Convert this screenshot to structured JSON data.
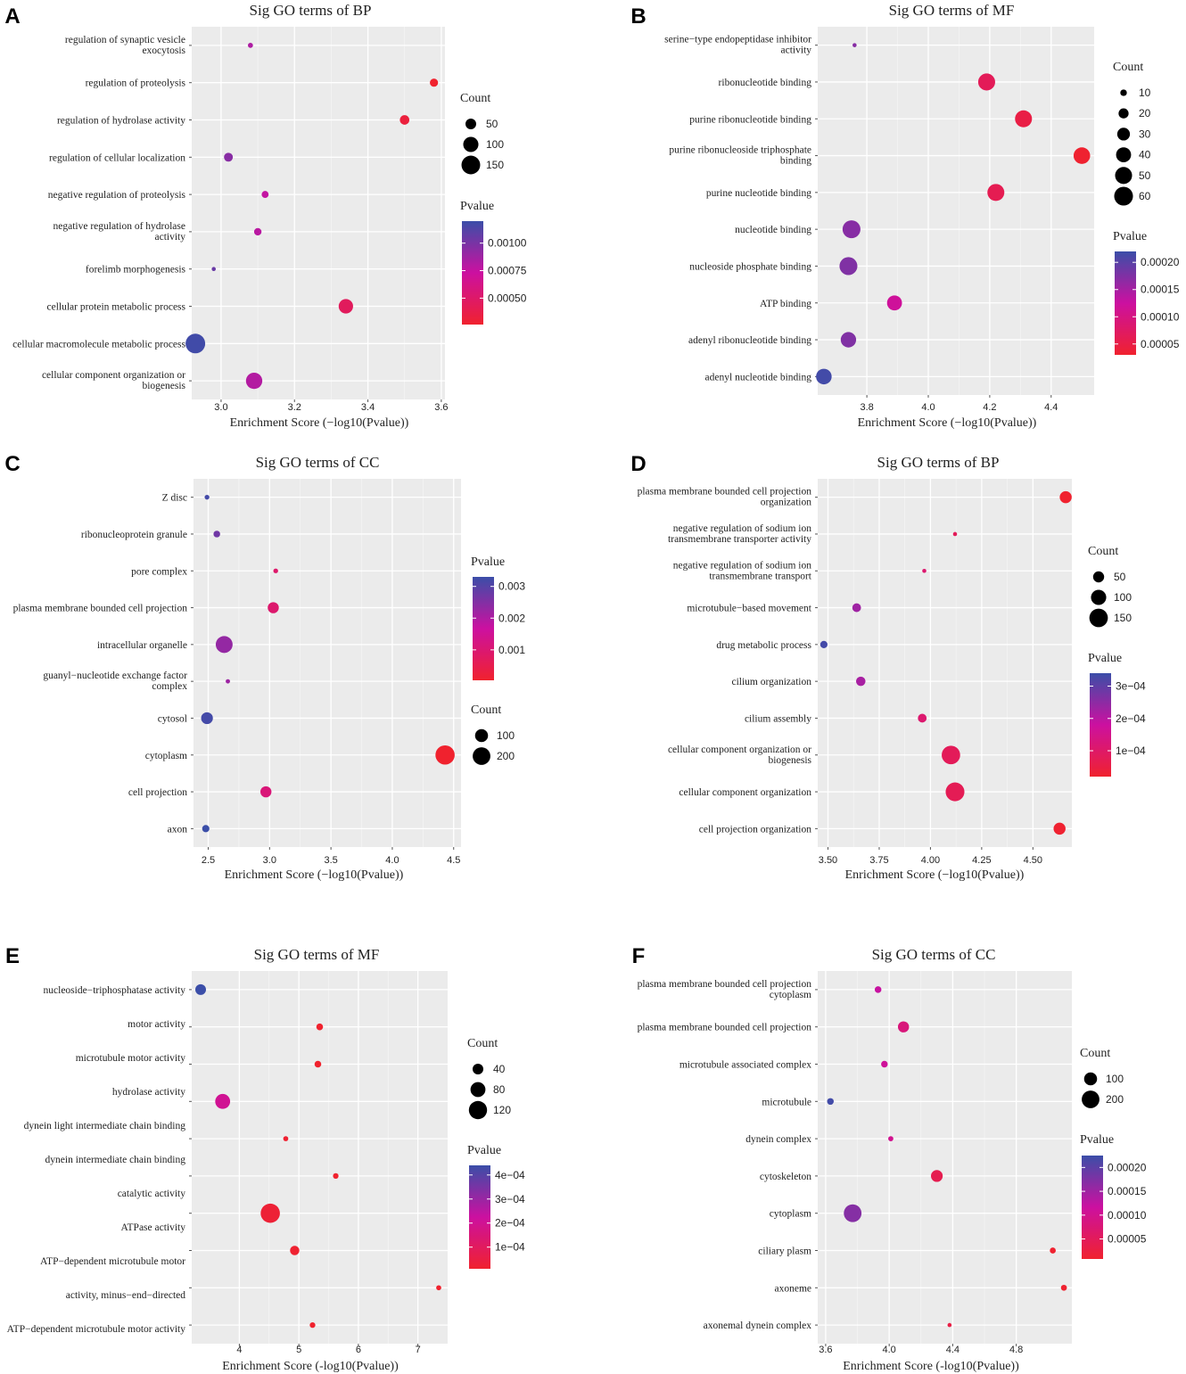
{
  "figure": {
    "x_axis_title": "Enrichment Score (−log10(Pvalue))",
    "count_legend_title": "Count",
    "pvalue_legend_title": "Pvalue",
    "color_low": "#f0222e",
    "color_mid": "#cc10a0",
    "color_high": "#3b4ea8",
    "panel_background": "#ebebeb"
  },
  "chart_data": [
    {
      "panel": "A",
      "type": "scatter",
      "title": "Sig GO terms of BP",
      "xlabel": "Enrichment Score (−log10(Pvalue))",
      "xlim": [
        2.92,
        3.61
      ],
      "xticks": [
        3.0,
        3.2,
        3.4,
        3.6
      ],
      "xtick_labels": [
        "3.0",
        "3.2",
        "3.4",
        "3.6"
      ],
      "legend_order": "count-first",
      "count_breaks": [
        50,
        100,
        150
      ],
      "count_range": [
        8,
        165
      ],
      "pvalue_breaks": [
        0.001,
        0.00075,
        0.0005
      ],
      "pvalue_labels": [
        "0.00100",
        "0.00075",
        "0.00050"
      ],
      "pvalue_range": [
        0.00026,
        0.0012
      ],
      "terms": [
        {
          "label": [
            "regulation of synaptic vesicle",
            "exocytosis"
          ],
          "x": 3.08,
          "count": 12,
          "pvalue": 0.00083
        },
        {
          "label": [
            "regulation of proteolysis"
          ],
          "x": 3.58,
          "count": 30,
          "pvalue": 0.00026
        },
        {
          "label": [
            "regulation of hydrolase activity"
          ],
          "x": 3.5,
          "count": 40,
          "pvalue": 0.00032
        },
        {
          "label": [
            "regulation of cellular localization"
          ],
          "x": 3.02,
          "count": 35,
          "pvalue": 0.00095
        },
        {
          "label": [
            "negative regulation of proteolysis"
          ],
          "x": 3.12,
          "count": 22,
          "pvalue": 0.00076
        },
        {
          "label": [
            "negative regulation of hydrolase",
            "activity"
          ],
          "x": 3.1,
          "count": 25,
          "pvalue": 0.00079
        },
        {
          "label": [
            "forelimb morphogenesis"
          ],
          "x": 2.98,
          "count": 8,
          "pvalue": 0.00105
        },
        {
          "label": [
            "cellular protein metabolic process"
          ],
          "x": 3.34,
          "count": 90,
          "pvalue": 0.00045
        },
        {
          "label": [
            "cellular macromolecule metabolic process"
          ],
          "x": 2.93,
          "count": 165,
          "pvalue": 0.00118
        },
        {
          "label": [
            "cellular component organization or",
            "biogenesis"
          ],
          "x": 3.09,
          "count": 115,
          "pvalue": 0.00081
        }
      ]
    },
    {
      "panel": "B",
      "type": "scatter",
      "title": "Sig GO terms of MF",
      "xlabel": "Enrichment Score (−log10(Pvalue))",
      "xlim": [
        3.64,
        4.54
      ],
      "xticks": [
        3.8,
        4.0,
        4.2,
        4.4
      ],
      "xtick_labels": [
        "3.8",
        "4.0",
        "4.2",
        "4.4"
      ],
      "legend_order": "count-first",
      "count_breaks": [
        10,
        20,
        30,
        40,
        50,
        60
      ],
      "count_range": [
        5,
        65
      ],
      "pvalue_breaks": [
        0.0002,
        0.00015,
        0.0001,
        5e-05
      ],
      "pvalue_labels": [
        "0.00020",
        "0.00015",
        "0.00010",
        "0.00005"
      ],
      "pvalue_range": [
        3e-05,
        0.00022
      ],
      "terms": [
        {
          "label": [
            "serine−type endopeptidase inhibitor",
            "activity"
          ],
          "x": 3.76,
          "count": 5,
          "pvalue": 0.00017
        },
        {
          "label": [
            "ribonucleotide binding"
          ],
          "x": 4.19,
          "count": 50,
          "pvalue": 6.5e-05
        },
        {
          "label": [
            "purine ribonucleotide binding"
          ],
          "x": 4.31,
          "count": 50,
          "pvalue": 4.9e-05
        },
        {
          "label": [
            "purine ribonucleoside triphosphate",
            "binding"
          ],
          "x": 4.5,
          "count": 48,
          "pvalue": 3.2e-05
        },
        {
          "label": [
            "purine nucleotide binding"
          ],
          "x": 4.22,
          "count": 50,
          "pvalue": 6e-05
        },
        {
          "label": [
            "nucleotide binding"
          ],
          "x": 3.75,
          "count": 55,
          "pvalue": 0.00017
        },
        {
          "label": [
            "nucleoside phosphate binding"
          ],
          "x": 3.74,
          "count": 55,
          "pvalue": 0.000175
        },
        {
          "label": [
            "ATP binding"
          ],
          "x": 3.89,
          "count": 40,
          "pvalue": 0.00012
        },
        {
          "label": [
            "adenyl ribonucleotide binding"
          ],
          "x": 3.74,
          "count": 42,
          "pvalue": 0.000175
        },
        {
          "label": [
            "adenyl nucleotide binding"
          ],
          "x": 3.66,
          "count": 43,
          "pvalue": 0.000215
        }
      ]
    },
    {
      "panel": "C",
      "type": "scatter",
      "title": "Sig GO terms of CC",
      "xlabel": "Enrichment Score (−log10(Pvalue))",
      "xlim": [
        2.38,
        4.56
      ],
      "xticks": [
        2.5,
        3.0,
        3.5,
        4.0,
        4.5
      ],
      "xtick_labels": [
        "2.5",
        "3.0",
        "3.5",
        "4.0",
        "4.5"
      ],
      "legend_order": "pvalue-first",
      "count_breaks": [
        100,
        200
      ],
      "count_range": [
        5,
        250
      ],
      "pvalue_breaks": [
        0.003,
        0.002,
        0.001
      ],
      "pvalue_labels": [
        "0.003",
        "0.002",
        "0.001"
      ],
      "pvalue_range": [
        4e-05,
        0.0033
      ],
      "terms": [
        {
          "label": [
            "Z disc"
          ],
          "x": 2.49,
          "count": 8,
          "pvalue": 0.0032
        },
        {
          "label": [
            "ribonucleoprotein granule"
          ],
          "x": 2.57,
          "count": 20,
          "pvalue": 0.0027
        },
        {
          "label": [
            "pore complex"
          ],
          "x": 3.05,
          "count": 8,
          "pvalue": 0.0009
        },
        {
          "label": [
            "plasma membrane bounded cell projection"
          ],
          "x": 3.03,
          "count": 70,
          "pvalue": 0.00093
        },
        {
          "label": [
            "intracellular organelle"
          ],
          "x": 2.63,
          "count": 180,
          "pvalue": 0.0023
        },
        {
          "label": [
            "guanyl−nucleotide exchange factor",
            "complex"
          ],
          "x": 2.66,
          "count": 6,
          "pvalue": 0.0022
        },
        {
          "label": [
            "cytosol"
          ],
          "x": 2.49,
          "count": 80,
          "pvalue": 0.0032
        },
        {
          "label": [
            "cytoplasm"
          ],
          "x": 4.43,
          "count": 240,
          "pvalue": 4e-05
        },
        {
          "label": [
            "cell projection"
          ],
          "x": 2.97,
          "count": 70,
          "pvalue": 0.0011
        },
        {
          "label": [
            "axon"
          ],
          "x": 2.48,
          "count": 25,
          "pvalue": 0.0033
        }
      ]
    },
    {
      "panel": "D",
      "type": "scatter",
      "title": "Sig GO terms of BP",
      "xlabel": "Enrichment Score (−log10(Pvalue))",
      "xlim": [
        3.45,
        4.69
      ],
      "xticks": [
        3.5,
        3.75,
        4.0,
        4.25,
        4.5
      ],
      "xtick_labels": [
        "3.50",
        "3.75",
        "4.00",
        "4.25",
        "4.50"
      ],
      "legend_order": "count-first",
      "count_breaks": [
        50,
        100,
        150
      ],
      "count_range": [
        5,
        170
      ],
      "pvalue_breaks": [
        0.0003,
        0.0002,
        0.0001
      ],
      "pvalue_labels": [
        "3e−04",
        "2e−04",
        "1e−04"
      ],
      "pvalue_range": [
        2e-05,
        0.00034
      ],
      "terms": [
        {
          "label": [
            "plasma membrane bounded cell projection",
            "organization"
          ],
          "x": 4.66,
          "count": 60,
          "pvalue": 2.2e-05
        },
        {
          "label": [
            "negative regulation of sodium ion",
            "transmembrane transporter activity"
          ],
          "x": 4.12,
          "count": 5,
          "pvalue": 8e-05
        },
        {
          "label": [
            "negative regulation of sodium ion",
            "transmembrane transport"
          ],
          "x": 3.97,
          "count": 5,
          "pvalue": 0.00011
        },
        {
          "label": [
            "microtubule−based movement"
          ],
          "x": 3.64,
          "count": 30,
          "pvalue": 0.00023
        },
        {
          "label": [
            "drug metabolic process"
          ],
          "x": 3.48,
          "count": 20,
          "pvalue": 0.00033
        },
        {
          "label": [
            "cilium organization"
          ],
          "x": 3.66,
          "count": 35,
          "pvalue": 0.00022
        },
        {
          "label": [
            "cilium assembly"
          ],
          "x": 3.96,
          "count": 30,
          "pvalue": 0.00011
        },
        {
          "label": [
            "cellular component organization or",
            "biogenesis"
          ],
          "x": 4.1,
          "count": 150,
          "pvalue": 8e-05
        },
        {
          "label": [
            "cellular component organization"
          ],
          "x": 4.12,
          "count": 155,
          "pvalue": 7.5e-05
        },
        {
          "label": [
            "cell projection organization"
          ],
          "x": 4.63,
          "count": 60,
          "pvalue": 2.4e-05
        }
      ]
    },
    {
      "panel": "E",
      "type": "scatter",
      "title": "Sig GO terms of MF",
      "xlabel": "Enrichment Score (-log10(Pvalue))",
      "xlim": [
        3.2,
        7.5
      ],
      "xticks": [
        4,
        5,
        6,
        7
      ],
      "xtick_labels": [
        "4",
        "5",
        "6",
        "7"
      ],
      "legend_order": "count-first",
      "count_breaks": [
        40,
        80,
        120
      ],
      "count_range": [
        5,
        140
      ],
      "pvalue_breaks": [
        0.0004,
        0.0003,
        0.0002,
        0.0001
      ],
      "pvalue_labels": [
        "4e−04",
        "3e−04",
        "2e−04",
        "1e−04"
      ],
      "pvalue_range": [
        1e-05,
        0.00044
      ],
      "axis_labels": [
        "nucleoside−triphosphatase activity",
        "motor activity",
        "microtubule motor activity",
        "hydrolase activity",
        "dynein light intermediate chain binding",
        "dynein intermediate chain binding",
        "catalytic activity",
        "ATPase activity",
        "ATP−dependent microtubule motor",
        "activity, minus−end−directed",
        "ATP−dependent microtubule motor activity"
      ],
      "terms": [
        {
          "x": 3.35,
          "count": 40,
          "pvalue": 0.00044
        },
        {
          "x": 5.35,
          "count": 15,
          "pvalue": 1e-05
        },
        {
          "x": 5.32,
          "count": 15,
          "pvalue": 1e-05
        },
        {
          "x": 3.72,
          "count": 80,
          "pvalue": 0.0002
        },
        {
          "x": 4.78,
          "count": 8,
          "pvalue": 1.6e-05
        },
        {
          "x": 5.62,
          "count": 10,
          "pvalue": 1e-05
        },
        {
          "x": 4.52,
          "count": 135,
          "pvalue": 2.5e-05
        },
        {
          "x": 4.93,
          "count": 30,
          "pvalue": 1.5e-05
        },
        {
          "x": 7.35,
          "count": 8,
          "pvalue": 1e-05
        },
        {
          "x": 5.23,
          "count": 10,
          "pvalue": 1e-05
        }
      ]
    },
    {
      "panel": "F",
      "type": "scatter",
      "title": "Sig GO terms of CC",
      "xlabel": "Enrichment Score (-log10(Pvalue))",
      "xlim": [
        3.55,
        5.15
      ],
      "xticks": [
        3.6,
        4.0,
        4.4,
        4.8
      ],
      "xtick_labels": [
        "3.6",
        "4.0",
        "4.4",
        "4.8"
      ],
      "legend_order": "count-first",
      "count_breaks": [
        100,
        200
      ],
      "count_range": [
        5,
        250
      ],
      "pvalue_breaks": [
        0.0002,
        0.00015,
        0.0001,
        5e-05
      ],
      "pvalue_labels": [
        "0.00020",
        "0.00015",
        "0.00010",
        "0.00005"
      ],
      "pvalue_range": [
        8e-06,
        0.000225
      ],
      "terms": [
        {
          "label": [
            "plasma membrane bounded cell projection",
            "cytoplasm"
          ],
          "x": 3.93,
          "count": 20,
          "pvalue": 0.00012
        },
        {
          "label": [
            "plasma membrane bounded cell projection"
          ],
          "x": 4.09,
          "count": 70,
          "pvalue": 8e-05
        },
        {
          "label": [
            "microtubule associated complex"
          ],
          "x": 3.97,
          "count": 20,
          "pvalue": 0.00011
        },
        {
          "label": [
            "microtubule"
          ],
          "x": 3.63,
          "count": 20,
          "pvalue": 0.00022
        },
        {
          "label": [
            "dynein complex"
          ],
          "x": 4.01,
          "count": 10,
          "pvalue": 0.0001
        },
        {
          "label": [
            "cytoskeleton"
          ],
          "x": 4.3,
          "count": 80,
          "pvalue": 4e-05
        },
        {
          "label": [
            "cytoplasm"
          ],
          "x": 3.77,
          "count": 200,
          "pvalue": 0.00017
        },
        {
          "label": [
            "ciliary plasm"
          ],
          "x": 5.03,
          "count": 15,
          "pvalue": 1e-05
        },
        {
          "label": [
            "axoneme"
          ],
          "x": 5.1,
          "count": 15,
          "pvalue": 1e-05
        },
        {
          "label": [
            "axonemal dynein complex"
          ],
          "x": 4.38,
          "count": 5,
          "pvalue": 3e-05
        }
      ]
    }
  ]
}
